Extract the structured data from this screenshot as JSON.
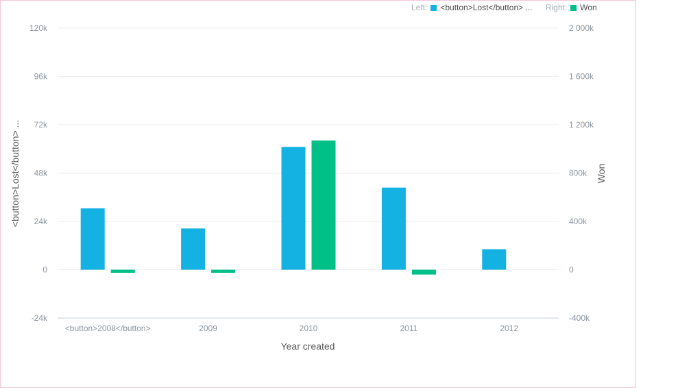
{
  "legend": {
    "left_prefix": "Left:",
    "left_series": "<button>Lost</button> ...",
    "right_prefix": "Right:",
    "right_series": "Won"
  },
  "colors": {
    "left": "#14b1e3",
    "right": "#00c087",
    "grid": "#ececec",
    "baseline": "#c9ccdc"
  },
  "chart_data": {
    "type": "bar",
    "categories": [
      "<button>2008</button>",
      "2009",
      "2010",
      "2011",
      "2012"
    ],
    "xlabel": "Year created",
    "ylabel_left": "<button>Lost</button> ...",
    "ylabel_right": "Won",
    "left_axis": {
      "ylim": [
        -24000,
        120000
      ],
      "ticks": [
        "-24k",
        "0",
        "24k",
        "48k",
        "72k",
        "96k",
        "120k"
      ]
    },
    "right_axis": {
      "ylim": [
        -400000,
        2000000
      ],
      "ticks": [
        "-400k",
        "0",
        "400k",
        "800k",
        "1 200k",
        "1 600k",
        "2 000k"
      ]
    },
    "series": [
      {
        "name": "<button>Lost</button> ...",
        "axis": "left",
        "values": [
          30500,
          20500,
          61000,
          40800,
          10200
        ]
      },
      {
        "name": "Won",
        "axis": "right",
        "values": [
          -25000,
          -25000,
          1070000,
          -40000,
          null
        ]
      }
    ],
    "grid": true,
    "legend_position": "top-right"
  }
}
